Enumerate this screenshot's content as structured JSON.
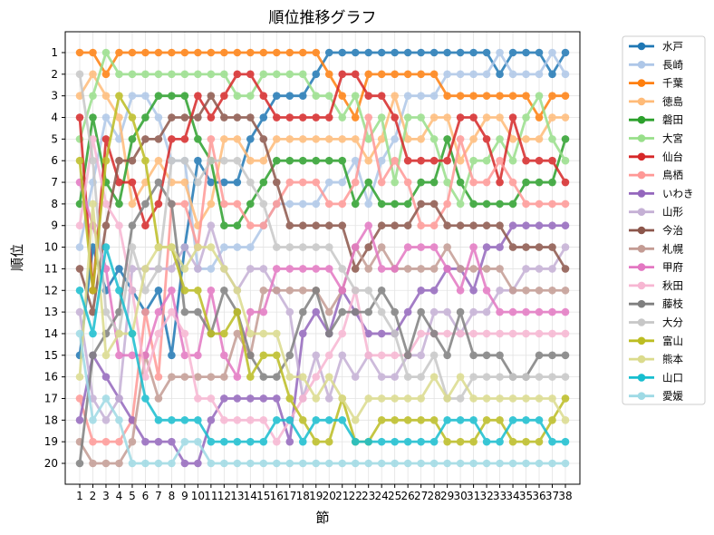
{
  "chart_data": {
    "type": "line",
    "title": "順位推移グラフ",
    "xlabel": "節",
    "ylabel": "順位",
    "x": [
      1,
      2,
      3,
      4,
      5,
      6,
      7,
      8,
      9,
      10,
      11,
      12,
      13,
      14,
      15,
      16,
      17,
      18,
      19,
      20,
      21,
      22,
      23,
      24,
      25,
      26,
      27,
      28,
      29,
      30,
      31,
      32,
      33,
      34,
      35,
      36,
      37,
      38
    ],
    "ylim": [
      20,
      1
    ],
    "y_inverted": true,
    "yticks": [
      1,
      2,
      3,
      4,
      5,
      6,
      7,
      8,
      9,
      10,
      11,
      12,
      13,
      14,
      15,
      16,
      17,
      18,
      19,
      20
    ],
    "grid": true,
    "legend_position": "outside-right",
    "series": [
      {
        "name": "水戸",
        "color": "#1f77b4",
        "values": [
          15,
          10,
          12,
          11,
          12,
          13,
          12,
          15,
          10,
          6,
          7,
          7,
          7,
          5,
          4,
          3,
          3,
          3,
          2,
          1,
          1,
          1,
          1,
          1,
          1,
          1,
          1,
          1,
          1,
          1,
          1,
          1,
          2,
          1,
          1,
          1,
          2,
          1
        ]
      },
      {
        "name": "長崎",
        "color": "#aec7e8",
        "values": [
          10,
          7,
          4,
          5,
          3,
          3,
          4,
          6,
          6,
          11,
          11,
          10,
          10,
          10,
          9,
          8,
          8,
          8,
          8,
          7,
          7,
          6,
          8,
          6,
          5,
          3,
          3,
          3,
          2,
          2,
          2,
          2,
          1,
          2,
          2,
          2,
          1,
          2
        ]
      },
      {
        "name": "千葉",
        "color": "#ff7f0e",
        "values": [
          1,
          1,
          2,
          1,
          1,
          1,
          1,
          1,
          1,
          1,
          1,
          1,
          1,
          1,
          1,
          1,
          1,
          1,
          1,
          2,
          3,
          4,
          2,
          2,
          2,
          2,
          2,
          2,
          3,
          3,
          3,
          3,
          3,
          3,
          3,
          4,
          3,
          3
        ]
      },
      {
        "name": "徳島",
        "color": "#ffbb78",
        "values": [
          3,
          2,
          3,
          4,
          8,
          7,
          6,
          7,
          7,
          9,
          8,
          5,
          5,
          6,
          6,
          5,
          5,
          5,
          5,
          5,
          5,
          5,
          6,
          5,
          3,
          5,
          5,
          4,
          4,
          6,
          5,
          4,
          4,
          5,
          5,
          5,
          4,
          4
        ]
      },
      {
        "name": "磐田",
        "color": "#2ca02c",
        "values": [
          8,
          4,
          7,
          8,
          5,
          4,
          3,
          3,
          3,
          5,
          6,
          9,
          9,
          8,
          7,
          6,
          6,
          6,
          6,
          6,
          6,
          8,
          7,
          8,
          8,
          8,
          7,
          7,
          5,
          7,
          8,
          8,
          8,
          8,
          7,
          7,
          7,
          5
        ]
      },
      {
        "name": "大宮",
        "color": "#98df8a",
        "values": [
          5,
          3,
          1,
          2,
          2,
          2,
          2,
          2,
          2,
          2,
          2,
          2,
          3,
          3,
          2,
          2,
          2,
          2,
          3,
          3,
          4,
          3,
          5,
          4,
          7,
          4,
          4,
          5,
          7,
          8,
          6,
          6,
          5,
          6,
          4,
          3,
          5,
          6
        ]
      },
      {
        "name": "仙台",
        "color": "#d62728",
        "values": [
          4,
          12,
          5,
          7,
          7,
          9,
          8,
          5,
          5,
          3,
          4,
          3,
          2,
          2,
          3,
          4,
          4,
          4,
          4,
          4,
          2,
          2,
          3,
          3,
          4,
          6,
          6,
          6,
          6,
          4,
          4,
          5,
          7,
          4,
          6,
          6,
          6,
          7
        ]
      },
      {
        "name": "鳥栖",
        "color": "#ff9896",
        "values": [
          17,
          19,
          19,
          19,
          18,
          13,
          16,
          8,
          8,
          10,
          5,
          8,
          8,
          9,
          9,
          8,
          7,
          7,
          7,
          8,
          8,
          7,
          4,
          7,
          6,
          7,
          9,
          9,
          8,
          5,
          7,
          7,
          6,
          7,
          8,
          8,
          8,
          8
        ]
      },
      {
        "name": "いわき",
        "color": "#9467bd",
        "values": [
          18,
          15,
          16,
          17,
          18,
          19,
          19,
          19,
          20,
          20,
          18,
          17,
          17,
          17,
          17,
          17,
          19,
          14,
          13,
          14,
          12,
          13,
          14,
          14,
          14,
          13,
          12,
          12,
          11,
          11,
          12,
          10,
          10,
          9,
          9,
          9,
          9,
          9
        ]
      },
      {
        "name": "山形",
        "color": "#c5b0d5",
        "values": [
          13,
          17,
          18,
          17,
          11,
          11,
          11,
          11,
          10,
          11,
          9,
          11,
          12,
          11,
          11,
          12,
          13,
          17,
          15,
          17,
          15,
          16,
          15,
          16,
          16,
          15,
          15,
          13,
          13,
          14,
          13,
          13,
          12,
          12,
          11,
          11,
          11,
          10
        ]
      },
      {
        "name": "今治",
        "color": "#8c564b",
        "values": [
          11,
          13,
          9,
          6,
          6,
          5,
          5,
          4,
          4,
          4,
          3,
          4,
          4,
          4,
          5,
          7,
          9,
          9,
          9,
          9,
          9,
          11,
          10,
          9,
          9,
          9,
          8,
          8,
          9,
          9,
          9,
          9,
          9,
          10,
          10,
          10,
          10,
          11
        ]
      },
      {
        "name": "札幌",
        "color": "#c49c94",
        "values": [
          19,
          20,
          20,
          20,
          19,
          15,
          17,
          16,
          16,
          16,
          16,
          16,
          14,
          15,
          12,
          12,
          12,
          12,
          12,
          13,
          12,
          10,
          11,
          10,
          11,
          11,
          11,
          11,
          10,
          11,
          11,
          11,
          11,
          12,
          12,
          12,
          12,
          12
        ]
      },
      {
        "name": "甲府",
        "color": "#e377c2",
        "values": [
          7,
          9,
          11,
          15,
          15,
          15,
          13,
          12,
          15,
          15,
          12,
          15,
          16,
          13,
          13,
          11,
          11,
          11,
          11,
          11,
          12,
          10,
          9,
          11,
          11,
          10,
          10,
          10,
          11,
          12,
          10,
          12,
          13,
          13,
          13,
          13,
          13,
          13
        ]
      },
      {
        "name": "秋田",
        "color": "#f7b6d2",
        "values": [
          9,
          5,
          8,
          9,
          12,
          16,
          14,
          13,
          14,
          17,
          17,
          18,
          18,
          18,
          18,
          19,
          18,
          17,
          16,
          15,
          14,
          12,
          15,
          15,
          15,
          15,
          14,
          14,
          14,
          14,
          14,
          14,
          14,
          14,
          14,
          14,
          14,
          14
        ]
      },
      {
        "name": "藤枝",
        "color": "#7f7f7f",
        "values": [
          20,
          15,
          14,
          13,
          9,
          8,
          7,
          8,
          13,
          13,
          14,
          12,
          13,
          15,
          16,
          16,
          15,
          13,
          12,
          14,
          13,
          13,
          13,
          12,
          13,
          15,
          13,
          14,
          15,
          13,
          15,
          15,
          15,
          16,
          16,
          15,
          15,
          15
        ]
      },
      {
        "name": "大分",
        "color": "#c7c7c7",
        "values": [
          2,
          6,
          13,
          14,
          10,
          12,
          11,
          6,
          6,
          7,
          6,
          6,
          6,
          7,
          8,
          10,
          10,
          10,
          10,
          10,
          11,
          12,
          12,
          13,
          14,
          16,
          16,
          15,
          17,
          17,
          16,
          16,
          16,
          16,
          16,
          16,
          16,
          16
        ]
      },
      {
        "name": "富山",
        "color": "#bcbd22",
        "values": [
          6,
          12,
          6,
          3,
          4,
          6,
          10,
          10,
          12,
          12,
          14,
          14,
          13,
          16,
          15,
          15,
          17,
          18,
          19,
          19,
          17,
          19,
          19,
          18,
          18,
          18,
          18,
          18,
          19,
          19,
          19,
          18,
          18,
          19,
          19,
          19,
          18,
          17
        ]
      },
      {
        "name": "熊本",
        "color": "#dbdb8d",
        "values": [
          16,
          8,
          15,
          14,
          14,
          11,
          10,
          10,
          11,
          10,
          10,
          11,
          12,
          14,
          14,
          14,
          16,
          16,
          17,
          16,
          17,
          18,
          17,
          17,
          17,
          17,
          17,
          16,
          17,
          16,
          17,
          17,
          17,
          17,
          17,
          17,
          17,
          18
        ]
      },
      {
        "name": "山口",
        "color": "#17becf",
        "values": [
          12,
          14,
          10,
          12,
          14,
          17,
          18,
          18,
          18,
          18,
          19,
          19,
          19,
          19,
          19,
          18,
          18,
          19,
          18,
          18,
          18,
          19,
          19,
          19,
          19,
          19,
          19,
          19,
          18,
          18,
          18,
          19,
          19,
          18,
          18,
          18,
          19,
          19
        ]
      },
      {
        "name": "愛媛",
        "color": "#9edae5",
        "values": [
          14,
          18,
          17,
          18,
          20,
          20,
          20,
          20,
          19,
          19,
          20,
          20,
          20,
          20,
          20,
          20,
          20,
          20,
          20,
          20,
          20,
          20,
          20,
          20,
          20,
          20,
          20,
          20,
          20,
          20,
          20,
          20,
          20,
          20,
          20,
          20,
          20,
          20
        ]
      }
    ]
  }
}
